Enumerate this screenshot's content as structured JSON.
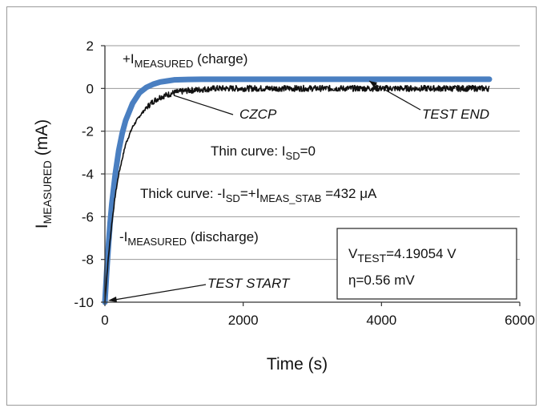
{
  "chart_data": {
    "type": "line",
    "xlabel": "Time (s)",
    "ylabel": {
      "main": "I",
      "sub": "MEASURED",
      "unit": " (mA)"
    },
    "xlim": [
      0,
      6000
    ],
    "ylim": [
      -10,
      2
    ],
    "xticks": [
      "0",
      "2000",
      "4000",
      "6000"
    ],
    "yticks": [
      "2",
      "0",
      "-2",
      "-4",
      "-6",
      "-8",
      "-10"
    ],
    "grid": "horizontal",
    "series": [
      {
        "style": "thin-black",
        "color": "#111111",
        "x": [
          0,
          25,
          50,
          75,
          100,
          150,
          200,
          250,
          300,
          400,
          500,
          600,
          700,
          800,
          900,
          1000,
          1200,
          1400,
          1600,
          1800,
          2000,
          2500,
          3000,
          3500,
          4000,
          4500,
          5000,
          5500,
          5560
        ],
        "y": [
          -10.0,
          -8.9,
          -7.9,
          -7.1,
          -6.3,
          -5.0,
          -4.0,
          -3.3,
          -2.6,
          -1.8,
          -1.3,
          -0.9,
          -0.6,
          -0.4,
          -0.3,
          -0.2,
          -0.1,
          -0.05,
          0.0,
          0.0,
          0.0,
          0.0,
          0.0,
          0.0,
          0.0,
          0.0,
          0.0,
          0.0,
          0.0
        ]
      },
      {
        "style": "thick-blue",
        "color": "#4a7fc1",
        "x": [
          0,
          25,
          50,
          75,
          100,
          150,
          200,
          250,
          300,
          400,
          500,
          600,
          700,
          800,
          900,
          1000,
          1200,
          1400,
          1600,
          2000,
          2500,
          3000,
          3500,
          4000,
          4500,
          5000,
          5500,
          5560
        ],
        "y": [
          -10.0,
          -8.6,
          -7.4,
          -6.3,
          -5.4,
          -4.0,
          -2.9,
          -2.1,
          -1.5,
          -0.7,
          -0.2,
          0.05,
          0.2,
          0.3,
          0.35,
          0.4,
          0.42,
          0.43,
          0.43,
          0.43,
          0.43,
          0.43,
          0.43,
          0.43,
          0.43,
          0.43,
          0.43,
          0.43
        ]
      }
    ],
    "annotations": {
      "charge": {
        "prefix": "+I",
        "sub": "MEASURED",
        "suffix": " (charge)"
      },
      "discharge": {
        "prefix": "-I",
        "sub": "MEASURED",
        "suffix": " (discharge)"
      },
      "czcp": "CZCP",
      "test_end": "TEST END",
      "test_start": "TEST START",
      "thin_curve": {
        "text": "Thin curve:   I",
        "sub": "SD",
        "suffix": "=0"
      },
      "thick_curve": {
        "a": "Thick curve:  -I",
        "sub1": "SD",
        "b": "=+I",
        "sub2": "MEAS_STAB",
        "c": " =432 μA"
      },
      "info_box": {
        "line1": {
          "prefix": "V",
          "sub": "TEST",
          "suffix": "=4.19054 V"
        },
        "line2": "η=0.56 mV"
      }
    }
  }
}
